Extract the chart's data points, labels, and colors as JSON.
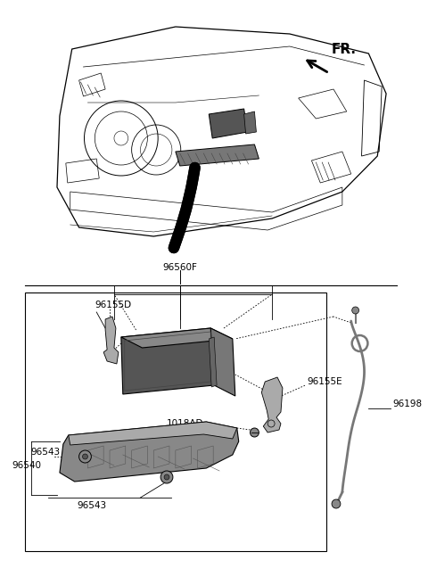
{
  "bg_color": "#ffffff",
  "lc": "#000000",
  "gray_dark": "#666666",
  "gray_med": "#888888",
  "gray_light": "#aaaaaa",
  "gray_lighter": "#cccccc",
  "labels": {
    "FR": "FR.",
    "96560F": "96560F",
    "96155D": "96155D",
    "96155E": "96155E",
    "96198": "96198",
    "96543": "96543",
    "96540": "96540",
    "1018AD": "1018AD"
  },
  "fig_width": 4.8,
  "fig_height": 6.56,
  "dpi": 100
}
